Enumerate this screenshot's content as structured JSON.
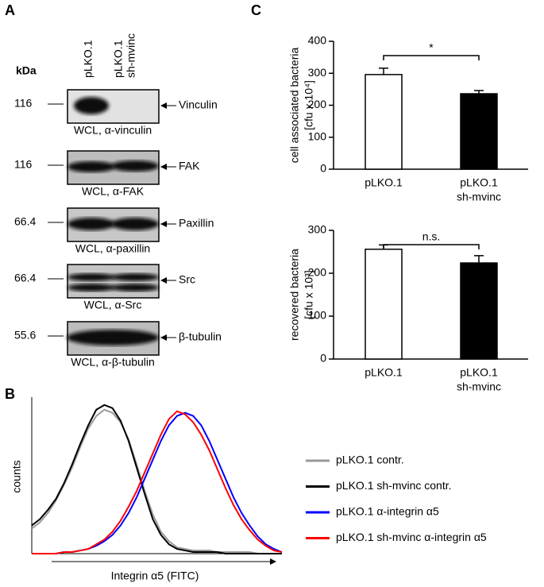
{
  "panel_labels": [
    "A",
    "B",
    "C"
  ],
  "blot": {
    "kda_header": "kDa",
    "lanes": [
      [
        "pLKO.1"
      ],
      [
        "pLKO.1",
        "sh-mvinc"
      ]
    ],
    "rows": [
      {
        "kda": "116",
        "protein": "Vinculin",
        "caption": "WCL, α-vinculin"
      },
      {
        "kda": "116",
        "protein": "FAK",
        "caption": "WCL, α-FAK"
      },
      {
        "kda": "66.4",
        "protein": "Paxillin",
        "caption": "WCL, α-paxillin"
      },
      {
        "kda": "66.4",
        "protein": "Src",
        "caption": "WCL, α-Src"
      },
      {
        "kda": "55.6",
        "protein": "β-tubulin",
        "caption": "WCL, α-β-tubulin"
      }
    ]
  },
  "chart_data": [
    {
      "type": "bar",
      "ylabel": [
        "cell associated bacteria",
        "[cfu x 10⁴]"
      ],
      "categories": [
        [
          "pLKO.1"
        ],
        [
          "pLKO.1",
          "sh-mvinc"
        ]
      ],
      "values": [
        296,
        236
      ],
      "errors": [
        20,
        10
      ],
      "colors": [
        "#ffffff",
        "#000000"
      ],
      "ylim": [
        0,
        400
      ],
      "yticks": [
        0,
        100,
        200,
        300,
        400
      ],
      "annotation": "*"
    },
    {
      "type": "bar",
      "ylabel": [
        "recovered bacteria",
        "[cfu x 10³]"
      ],
      "categories": [
        [
          "pLKO.1"
        ],
        [
          "pLKO.1",
          "sh-mvinc"
        ]
      ],
      "values": [
        256,
        224
      ],
      "errors": [
        10,
        17
      ],
      "colors": [
        "#ffffff",
        "#000000"
      ],
      "ylim": [
        0,
        300
      ],
      "yticks": [
        0,
        100,
        200,
        300
      ],
      "annotation": "n.s."
    },
    {
      "type": "line",
      "ylabel": "counts",
      "xlabel": "Integrin α5 (FITC)",
      "ylim": [
        0,
        100
      ],
      "series": [
        {
          "name": "pLKO.1 contr.",
          "color": "#999999",
          "values": [
            16,
            20,
            26,
            34,
            44,
            55,
            68,
            80,
            88,
            92,
            90,
            84,
            73,
            57,
            40,
            25,
            14,
            8,
            4,
            3,
            2,
            2,
            2,
            1,
            1,
            1,
            1,
            1,
            0,
            0,
            0,
            0
          ]
        },
        {
          "name": "pLKO.1 sh-mvinc contr.",
          "color": "#000000",
          "values": [
            18,
            22,
            28,
            35,
            45,
            57,
            70,
            82,
            92,
            95,
            93,
            85,
            72,
            55,
            38,
            22,
            12,
            6,
            3,
            2,
            1,
            1,
            1,
            1,
            0,
            0,
            0,
            0,
            0,
            0,
            0,
            0
          ]
        },
        {
          "name": "pLKO.1 α-integrin α5",
          "color": "#0000ff",
          "values": [
            0,
            0,
            0,
            0,
            1,
            1,
            2,
            3,
            5,
            8,
            12,
            18,
            26,
            36,
            48,
            60,
            72,
            82,
            88,
            90,
            88,
            82,
            72,
            60,
            48,
            36,
            26,
            18,
            11,
            6,
            3,
            1
          ]
        },
        {
          "name": "pLKO.1 sh-mvinc α-integrin α5",
          "color": "#ff0000",
          "values": [
            0,
            0,
            0,
            0,
            1,
            1,
            2,
            3,
            6,
            9,
            14,
            21,
            30,
            40,
            52,
            64,
            76,
            86,
            91,
            89,
            84,
            76,
            66,
            54,
            42,
            31,
            22,
            15,
            9,
            5,
            2,
            1
          ]
        }
      ]
    }
  ]
}
